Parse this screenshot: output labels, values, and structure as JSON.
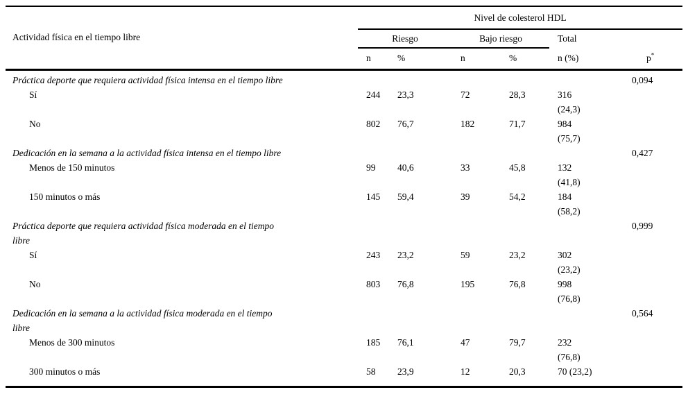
{
  "colors": {
    "background": "#ffffff",
    "text": "#000000",
    "rule": "#000000"
  },
  "header": {
    "row_label": "Actividad física en el tiempo libre",
    "group_label": "Nivel de colesterol HDL",
    "groups": {
      "riesgo": "Riesgo",
      "bajo": "Bajo riesgo",
      "total": "Total"
    },
    "subcols": [
      "n",
      "%",
      "n",
      "%",
      "n (%)"
    ],
    "p_label": "p",
    "p_superscript": "*"
  },
  "sections": [
    {
      "title": "Práctica deporte que requiera actividad física intensa en el tiempo libre",
      "p": "0,094",
      "rows": [
        {
          "label": "Sí",
          "riesgo_n": "244",
          "riesgo_pct": "23,3",
          "bajo_n": "72",
          "bajo_pct": "28,3",
          "total": "316\n(24,3)"
        },
        {
          "label": "No",
          "riesgo_n": "802",
          "riesgo_pct": "76,7",
          "bajo_n": "182",
          "bajo_pct": "71,7",
          "total": "984\n(75,7)"
        }
      ]
    },
    {
      "title": "Dedicación en la semana a la actividad física intensa en el tiempo libre",
      "p": "0,427",
      "rows": [
        {
          "label": "Menos de 150 minutos",
          "riesgo_n": "99",
          "riesgo_pct": "40,6",
          "bajo_n": "33",
          "bajo_pct": "45,8",
          "total": "132\n(41,8)"
        },
        {
          "label": "150 minutos o más",
          "riesgo_n": "145",
          "riesgo_pct": "59,4",
          "bajo_n": "39",
          "bajo_pct": "54,2",
          "total": "184\n(58,2)"
        }
      ]
    },
    {
      "title": "Práctica deporte que requiera actividad física moderada en el tiempo\nlibre",
      "p": "0,999",
      "rows": [
        {
          "label": "Sí",
          "riesgo_n": "243",
          "riesgo_pct": "23,2",
          "bajo_n": "59",
          "bajo_pct": "23,2",
          "total": "302\n(23,2)"
        },
        {
          "label": "No",
          "riesgo_n": "803",
          "riesgo_pct": "76,8",
          "bajo_n": "195",
          "bajo_pct": "76,8",
          "total": "998\n(76,8)"
        }
      ]
    },
    {
      "title": "Dedicación en la semana a la actividad física moderada en el tiempo\nlibre",
      "p": "0,564",
      "rows": [
        {
          "label": "Menos de 300 minutos",
          "riesgo_n": "185",
          "riesgo_pct": "76,1",
          "bajo_n": "47",
          "bajo_pct": "79,7",
          "total": "232\n(76,8)"
        },
        {
          "label": "300 minutos o más",
          "riesgo_n": "58",
          "riesgo_pct": "23,9",
          "bajo_n": "12",
          "bajo_pct": "20,3",
          "total": "70 (23,2)"
        }
      ]
    }
  ]
}
